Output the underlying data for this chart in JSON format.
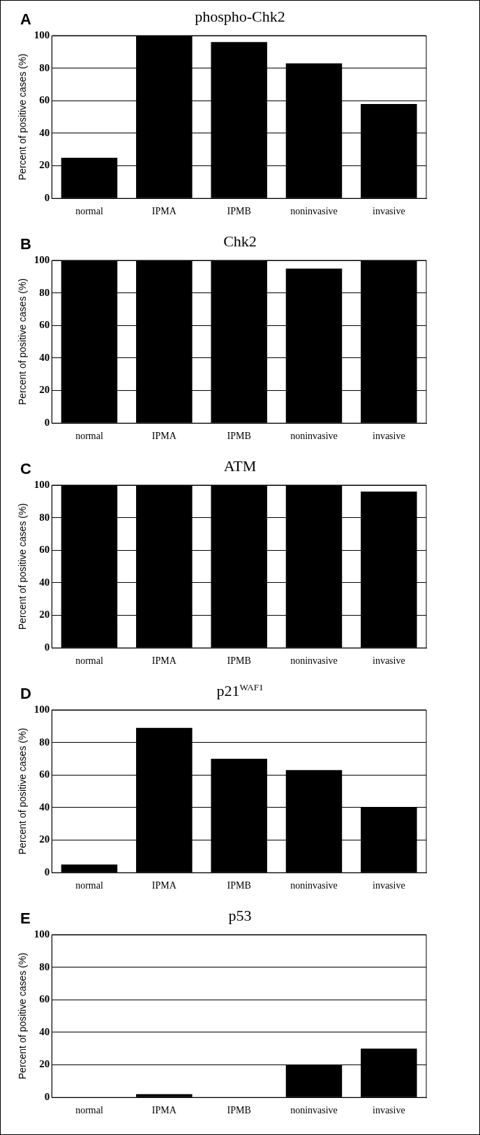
{
  "chart_data": [
    {
      "type": "bar",
      "title": "phospho-Chk2",
      "annotations": [
        "A"
      ],
      "ylabel": "Percent of positive cases (%)",
      "categories": [
        "normal",
        "IPMA",
        "IPMB",
        "noninvasive",
        "invasive"
      ],
      "values": [
        25,
        100,
        96,
        83,
        58
      ],
      "color": "#000000",
      "ylim": [
        0,
        100
      ],
      "yticks": [
        0,
        20,
        40,
        60,
        80,
        100
      ],
      "grid": "y"
    },
    {
      "type": "bar",
      "title": "Chk2",
      "annotations": [
        "B"
      ],
      "ylabel": "Percent of positive cases (%)",
      "categories": [
        "normal",
        "IPMA",
        "IPMB",
        "noninvasive",
        "invasive"
      ],
      "values": [
        100,
        100,
        100,
        95,
        100
      ],
      "color": "#000000",
      "ylim": [
        0,
        100
      ],
      "yticks": [
        0,
        20,
        40,
        60,
        80,
        100
      ],
      "grid": "y"
    },
    {
      "type": "bar",
      "title": "ATM",
      "annotations": [
        "C"
      ],
      "ylabel": "Percent of positive cases (%)",
      "categories": [
        "normal",
        "IPMA",
        "IPMB",
        "noninvasive",
        "invasive"
      ],
      "values": [
        100,
        100,
        100,
        100,
        96
      ],
      "color": "#000000",
      "ylim": [
        0,
        100
      ],
      "yticks": [
        0,
        20,
        40,
        60,
        80,
        100
      ],
      "grid": "y"
    },
    {
      "type": "bar",
      "title": "p21$^{WAF1}$",
      "annotations": [
        "D"
      ],
      "ylabel": "Percent of positive cases (%)",
      "categories": [
        "normal",
        "IPMA",
        "IPMB",
        "noninvasive",
        "invasive"
      ],
      "values": [
        5,
        89,
        70,
        63,
        40
      ],
      "color": "#000000",
      "ylim": [
        0,
        100
      ],
      "yticks": [
        0,
        20,
        40,
        60,
        80,
        100
      ],
      "grid": "y"
    },
    {
      "type": "bar",
      "title": "p53",
      "annotations": [
        "E"
      ],
      "ylabel": "Percent of positive cases (%)",
      "categories": [
        "normal",
        "IPMA",
        "IPMB",
        "noninvasive",
        "invasive"
      ],
      "values": [
        0,
        2,
        0,
        20,
        30
      ],
      "color": "#000000",
      "ylim": [
        0,
        100
      ],
      "yticks": [
        0,
        20,
        40,
        60,
        80,
        100
      ],
      "grid": "y"
    }
  ]
}
